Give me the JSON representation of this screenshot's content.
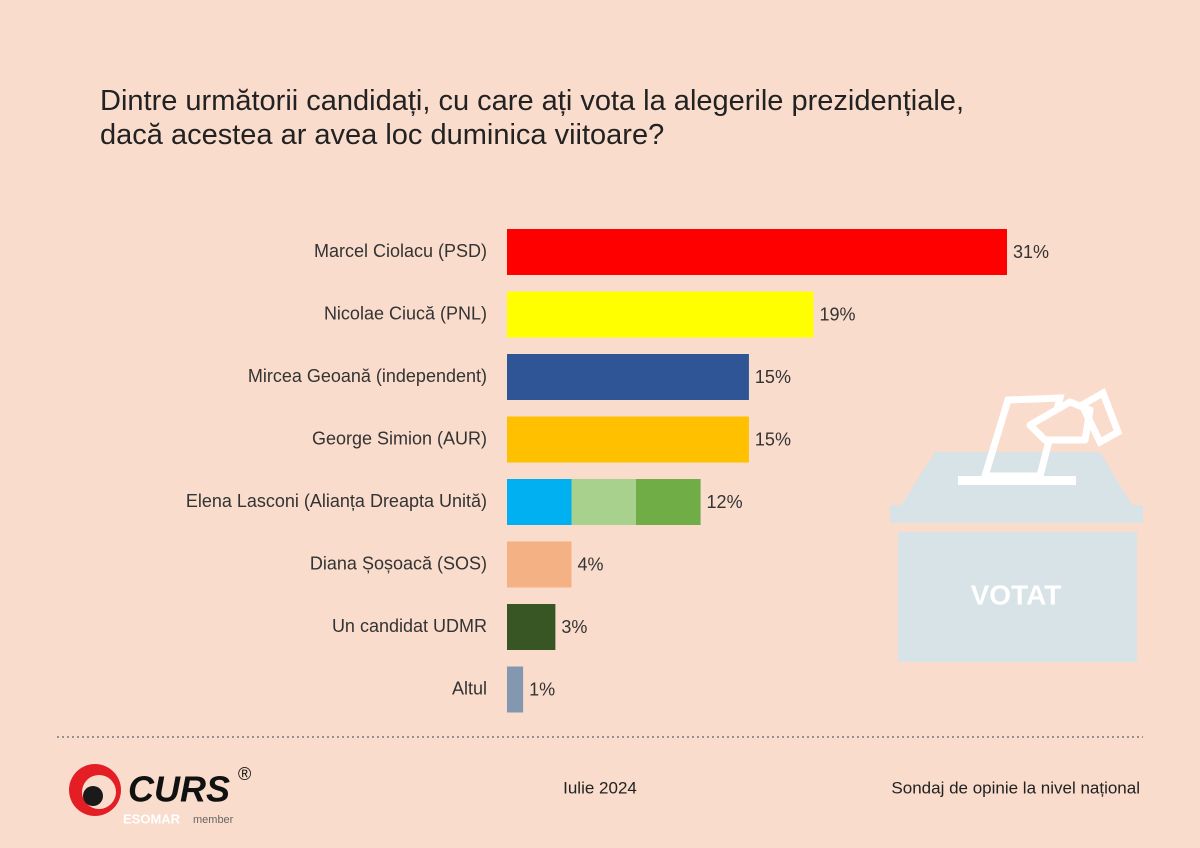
{
  "chart_data": {
    "type": "bar",
    "orientation": "horizontal",
    "title": "Dintre următorii candidați, cu care ați vota la alegerile prezidențiale,\ndacă acestea ar avea loc duminica viitoare?",
    "categories": [
      "Marcel Ciolacu (PSD)",
      "Nicolae Ciucă (PNL)",
      "Mircea Geoană (independent)",
      "George Simion (AUR)",
      "Elena Lasconi (Alianța Dreapta Unită)",
      "Diana Șoșoacă (SOS)",
      "Un candidat UDMR",
      "Altul"
    ],
    "values": [
      31,
      19,
      15,
      15,
      12,
      4,
      3,
      1
    ],
    "value_labels": [
      "31%",
      "19%",
      "15%",
      "15%",
      "12%",
      "4%",
      "3%",
      "1%"
    ],
    "colors": [
      "#ff0000",
      "#ffff00",
      "#2f5597",
      "#ffc000",
      [
        "#00b0f0",
        "#a9d18e",
        "#70ad47"
      ],
      "#f4b183",
      "#375623",
      "#8497b0"
    ]
  },
  "footer": {
    "brand": "CURS",
    "registered": "®",
    "esomar": "ESOMAR",
    "member": "member",
    "date": "Iulie 2024",
    "source": "Sondaj de opinie la nivel național"
  },
  "illustration": {
    "label": "VOTAT"
  }
}
